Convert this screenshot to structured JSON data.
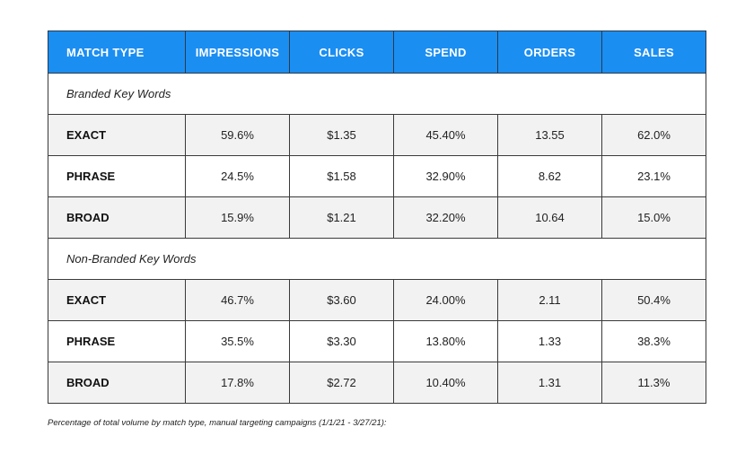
{
  "header": {
    "columns": [
      "MATCH TYPE",
      "IMPRESSIONS",
      "CLICKS",
      "SPEND",
      "ORDERS",
      "SALES"
    ]
  },
  "sections": [
    {
      "title": "Branded Key Words",
      "rows": [
        {
          "match_type": "EXACT",
          "impressions": "59.6%",
          "clicks": "$1.35",
          "spend": "45.40%",
          "orders": "13.55",
          "sales": "62.0%"
        },
        {
          "match_type": "PHRASE",
          "impressions": "24.5%",
          "clicks": "$1.58",
          "spend": "32.90%",
          "orders": "8.62",
          "sales": "23.1%"
        },
        {
          "match_type": "BROAD",
          "impressions": "15.9%",
          "clicks": "$1.21",
          "spend": "32.20%",
          "orders": "10.64",
          "sales": "15.0%"
        }
      ]
    },
    {
      "title": "Non-Branded Key Words",
      "rows": [
        {
          "match_type": "EXACT",
          "impressions": "46.7%",
          "clicks": "$3.60",
          "spend": "24.00%",
          "orders": "2.11",
          "sales": "50.4%"
        },
        {
          "match_type": "PHRASE",
          "impressions": "35.5%",
          "clicks": "$3.30",
          "spend": "13.80%",
          "orders": "1.33",
          "sales": "38.3%"
        },
        {
          "match_type": "BROAD",
          "impressions": "17.8%",
          "clicks": "$2.72",
          "spend": "10.40%",
          "orders": "1.31",
          "sales": "11.3%"
        }
      ]
    }
  ],
  "caption": "Percentage of total volume by match type, manual targeting campaigns (1/1/21 - 3/27/21):",
  "colors": {
    "header_bg": "#1b8ef2",
    "header_text": "#ffffff",
    "row_shade": "#f2f2f2",
    "border": "#3a3a3a"
  }
}
